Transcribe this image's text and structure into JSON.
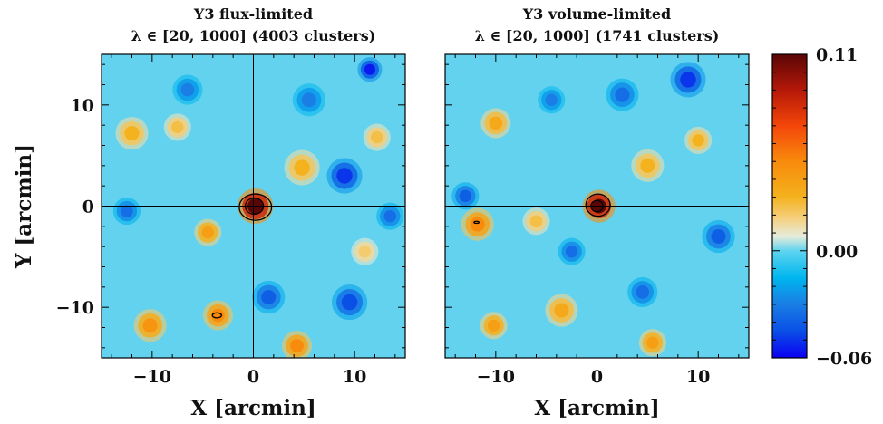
{
  "chart_data": [
    {
      "type": "heatmap",
      "title_line1": "Y3 flux-limited",
      "title_line2": "λ ∈ [20, 1000] (4003 clusters)",
      "xlabel": "X [arcmin]",
      "ylabel": "Y [arcmin]",
      "xlim": [
        -15,
        15
      ],
      "ylim": [
        -15,
        15
      ],
      "xticks": [
        -10,
        0,
        10
      ],
      "yticks": [
        -10,
        0,
        10
      ],
      "xtick_labels": [
        "−10",
        "0",
        "10"
      ],
      "ytick_labels": [
        "−10",
        "0",
        "10"
      ],
      "crosshair": [
        0,
        0
      ],
      "central_peak": {
        "x": 0.2,
        "y": 0.0,
        "value": 0.11
      },
      "contours": [
        {
          "x": 0.2,
          "y": -0.1,
          "rx": 1.6,
          "ry": 1.3
        },
        {
          "x": 0.1,
          "y": 0.0,
          "rx": 0.9,
          "ry": 0.8
        },
        {
          "x": -3.6,
          "y": -10.8,
          "rx": 0.45,
          "ry": 0.25
        }
      ],
      "features": [
        {
          "x": 0.2,
          "y": 0.0,
          "value": 0.11,
          "sx": 1.3
        },
        {
          "x": -3.5,
          "y": -10.8,
          "value": 0.05,
          "sx": 1.1
        },
        {
          "x": -10.2,
          "y": -11.8,
          "value": 0.045,
          "sx": 1.2
        },
        {
          "x": 4.3,
          "y": -13.8,
          "value": 0.05,
          "sx": 1.1
        },
        {
          "x": -4.5,
          "y": -2.6,
          "value": 0.04,
          "sx": 1.0
        },
        {
          "x": -12.0,
          "y": 7.2,
          "value": 0.03,
          "sx": 1.2
        },
        {
          "x": -7.5,
          "y": 7.8,
          "value": 0.025,
          "sx": 1.0
        },
        {
          "x": 4.8,
          "y": 3.8,
          "value": 0.03,
          "sx": 1.3
        },
        {
          "x": 12.2,
          "y": 6.8,
          "value": 0.025,
          "sx": 1.0
        },
        {
          "x": 11.0,
          "y": -4.5,
          "value": 0.02,
          "sx": 1.0
        },
        {
          "x": 9.0,
          "y": 3.0,
          "value": -0.05,
          "sx": 1.3
        },
        {
          "x": 11.5,
          "y": 13.5,
          "value": -0.055,
          "sx": 0.9
        },
        {
          "x": 9.5,
          "y": -9.5,
          "value": -0.045,
          "sx": 1.3
        },
        {
          "x": 1.5,
          "y": -9.0,
          "value": -0.04,
          "sx": 1.2
        },
        {
          "x": 13.5,
          "y": -1.0,
          "value": -0.035,
          "sx": 1.0
        },
        {
          "x": -12.5,
          "y": -0.5,
          "value": -0.035,
          "sx": 1.0
        },
        {
          "x": -6.5,
          "y": 11.5,
          "value": -0.03,
          "sx": 1.1
        },
        {
          "x": 5.5,
          "y": 10.5,
          "value": -0.03,
          "sx": 1.2
        }
      ]
    },
    {
      "type": "heatmap",
      "title_line1": "Y3 volume-limited",
      "title_line2": "λ ∈ [20, 1000] (1741 clusters)",
      "xlabel": "X [arcmin]",
      "ylabel": "",
      "xlim": [
        -15,
        15
      ],
      "ylim": [
        -15,
        15
      ],
      "xticks": [
        -10,
        0,
        10
      ],
      "yticks": [
        -10,
        0,
        10
      ],
      "xtick_labels": [
        "−10",
        "0",
        "10"
      ],
      "ytick_labels": [],
      "crosshair": [
        0,
        0
      ],
      "central_peak": {
        "x": 0.2,
        "y": 0.0,
        "value": 0.11
      },
      "contours": [
        {
          "x": 0.1,
          "y": 0.1,
          "rx": 1.2,
          "ry": 1.1
        },
        {
          "x": 0.0,
          "y": 0.0,
          "rx": 0.6,
          "ry": 0.55
        },
        {
          "x": -11.9,
          "y": -1.6,
          "rx": 0.25,
          "ry": 0.1
        }
      ],
      "features": [
        {
          "x": 0.2,
          "y": 0.0,
          "value": 0.11,
          "sx": 1.2
        },
        {
          "x": -11.8,
          "y": -1.8,
          "value": 0.05,
          "sx": 1.2
        },
        {
          "x": -10.0,
          "y": 8.2,
          "value": 0.035,
          "sx": 1.1
        },
        {
          "x": 10.0,
          "y": 6.5,
          "value": 0.03,
          "sx": 1.0
        },
        {
          "x": 5.0,
          "y": 4.0,
          "value": 0.03,
          "sx": 1.2
        },
        {
          "x": -10.2,
          "y": -11.8,
          "value": 0.04,
          "sx": 1.0
        },
        {
          "x": -3.5,
          "y": -10.3,
          "value": 0.035,
          "sx": 1.2
        },
        {
          "x": 5.5,
          "y": -13.5,
          "value": 0.04,
          "sx": 1.0
        },
        {
          "x": -6.0,
          "y": -1.5,
          "value": 0.025,
          "sx": 1.0
        },
        {
          "x": -13.0,
          "y": 1.0,
          "value": -0.04,
          "sx": 1.0
        },
        {
          "x": 9.0,
          "y": 12.5,
          "value": -0.05,
          "sx": 1.3
        },
        {
          "x": 2.5,
          "y": 11.0,
          "value": -0.035,
          "sx": 1.2
        },
        {
          "x": 12.0,
          "y": -3.0,
          "value": -0.04,
          "sx": 1.2
        },
        {
          "x": -2.5,
          "y": -4.5,
          "value": -0.035,
          "sx": 1.0
        },
        {
          "x": 4.5,
          "y": -8.5,
          "value": -0.035,
          "sx": 1.1
        },
        {
          "x": -4.5,
          "y": 10.5,
          "value": -0.03,
          "sx": 1.0
        }
      ]
    }
  ],
  "colorbar": {
    "vmin": -0.06,
    "vmax": 0.11,
    "labels": [
      {
        "value": 0.11,
        "text": "0.11"
      },
      {
        "value": 0.0,
        "text": "0.00"
      },
      {
        "value": -0.06,
        "text": "−0.06"
      }
    ],
    "colormap": [
      {
        "value": -0.06,
        "color": "#0b00f2"
      },
      {
        "value": -0.045,
        "color": "#0a4fe6"
      },
      {
        "value": -0.03,
        "color": "#1a7ee4"
      },
      {
        "value": -0.015,
        "color": "#00b6ef"
      },
      {
        "value": 0.0,
        "color": "#5fd4ef"
      },
      {
        "value": 0.008,
        "color": "#e6ecdb"
      },
      {
        "value": 0.018,
        "color": "#f5d080"
      },
      {
        "value": 0.03,
        "color": "#f4b21e"
      },
      {
        "value": 0.05,
        "color": "#f88b0c"
      },
      {
        "value": 0.07,
        "color": "#f4460a"
      },
      {
        "value": 0.09,
        "color": "#b51808"
      },
      {
        "value": 0.11,
        "color": "#5a0606"
      }
    ]
  }
}
